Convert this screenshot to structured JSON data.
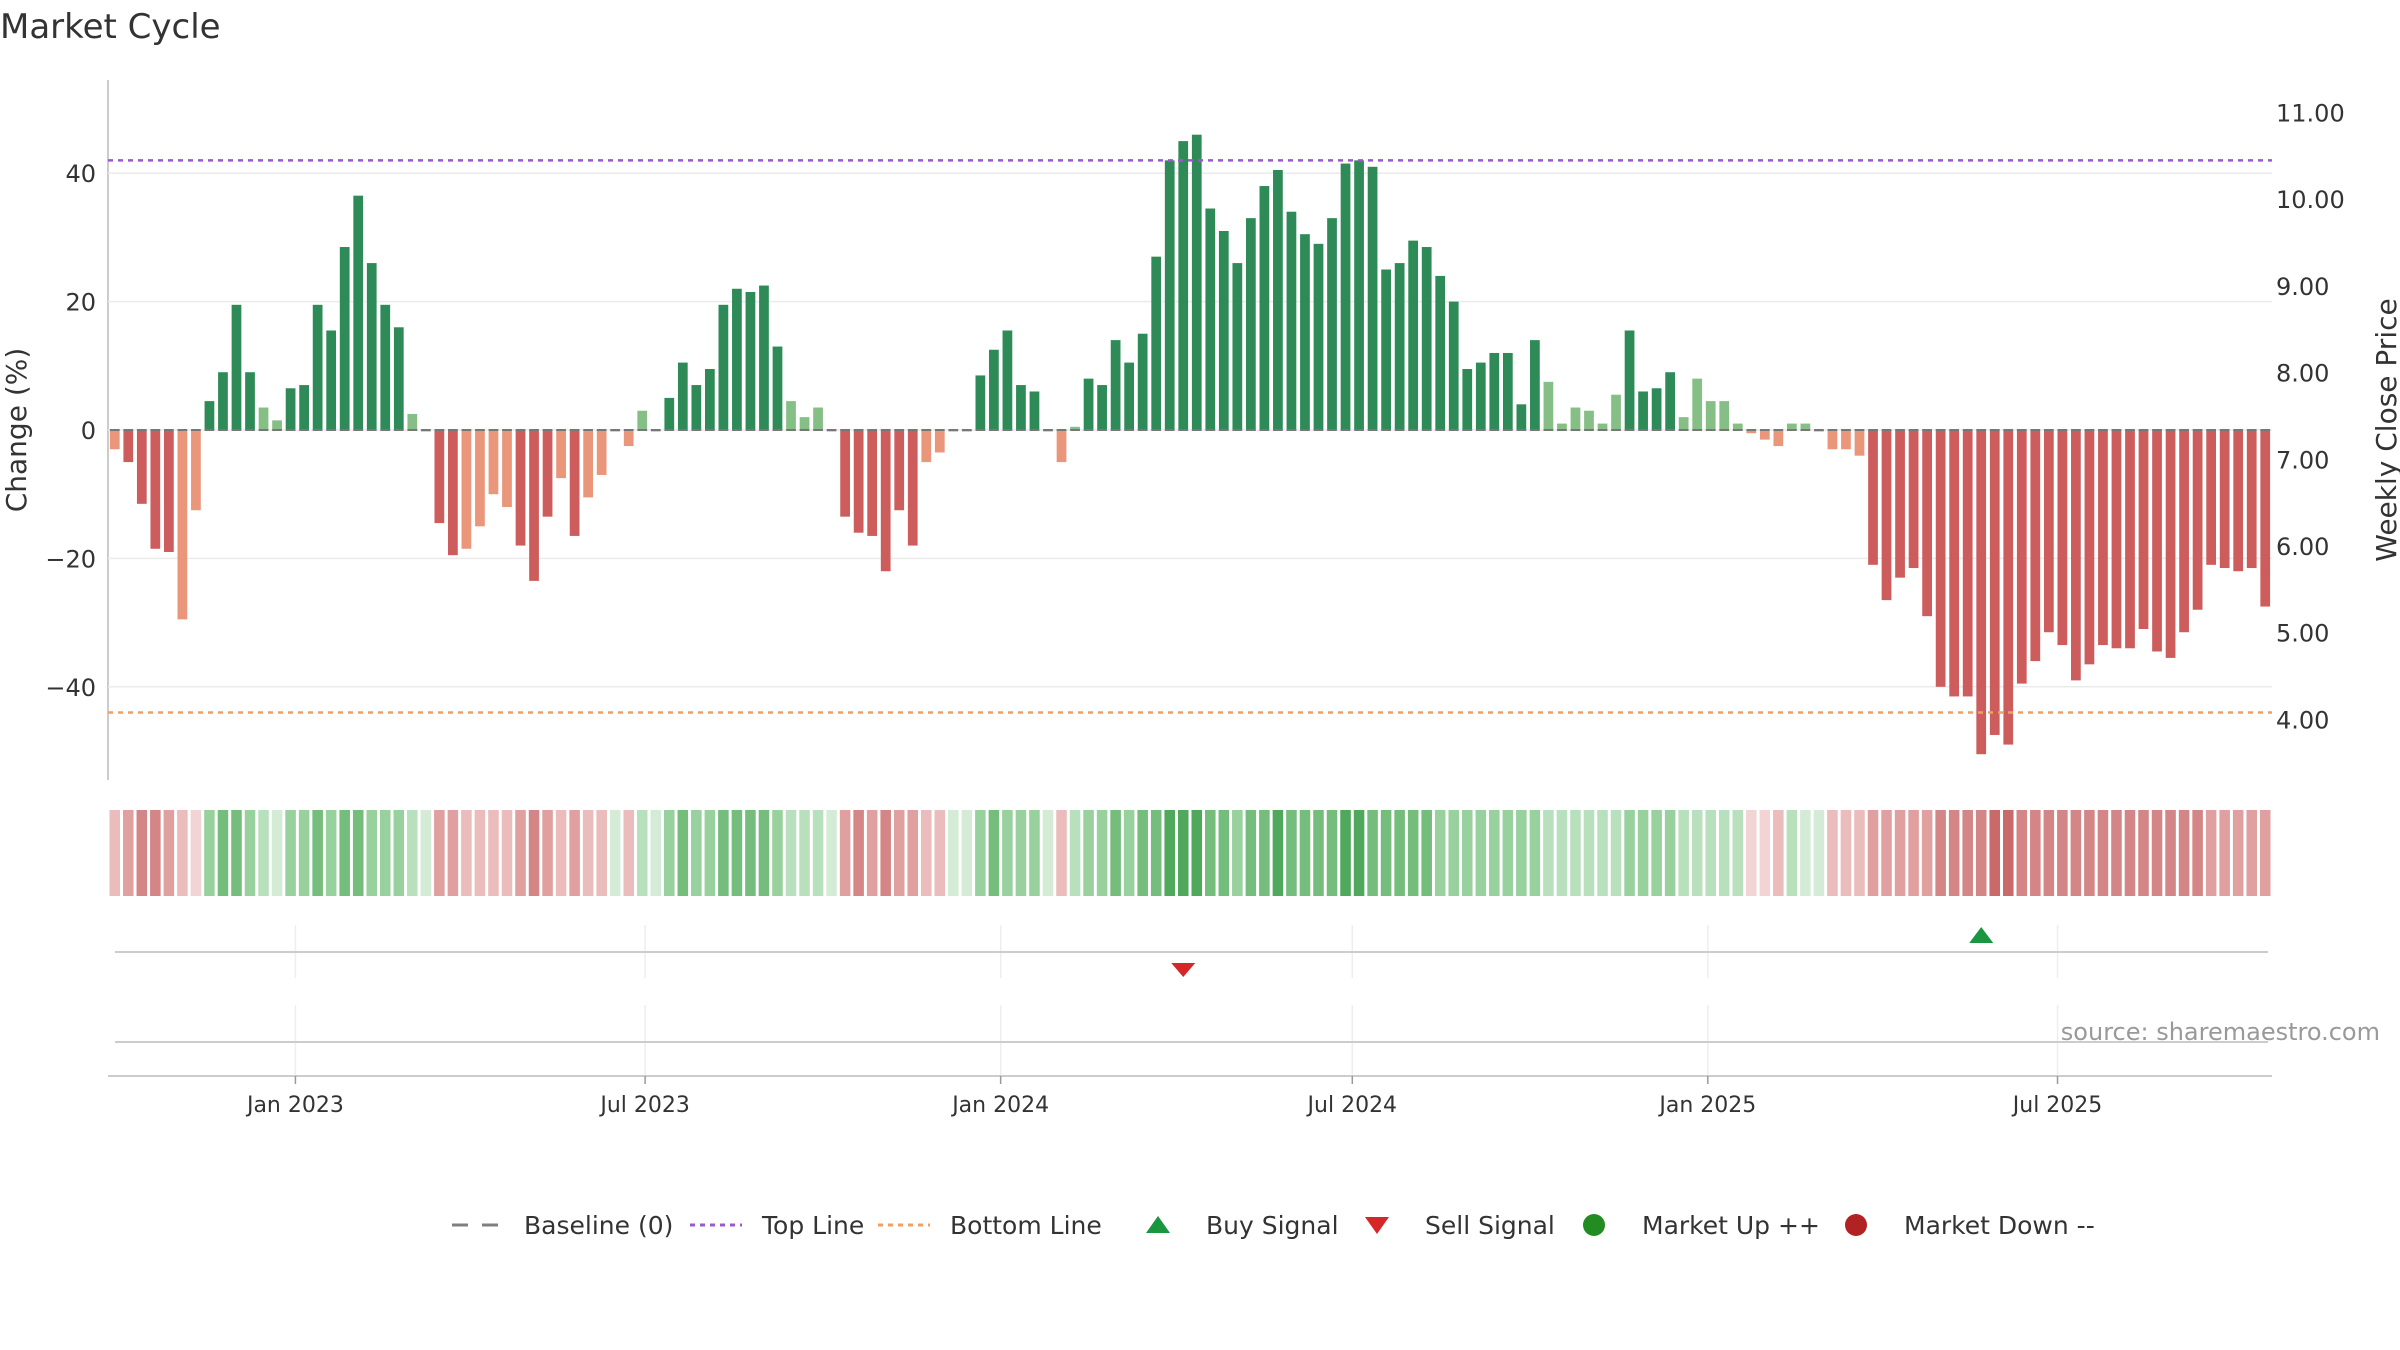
{
  "chart_data": {
    "type": "bar",
    "title": "Market Cycle",
    "ylabel": "Change (%)",
    "y2label": "Weekly Close Price",
    "source": "source: sharemaestro.com",
    "ylim": [
      -55,
      55
    ],
    "y2lim": [
      3.4,
      11.3
    ],
    "yticks": [
      40,
      20,
      0,
      -20,
      -40
    ],
    "ytick_labels": [
      "40",
      "20",
      "0",
      "−20",
      "−40"
    ],
    "y2ticks": [
      11,
      10,
      9,
      8,
      7,
      6,
      5,
      4
    ],
    "y2tick_labels": [
      "11.00",
      "10.00",
      "9.00",
      "8.00",
      "7.00",
      "6.00",
      "5.00",
      "4.00"
    ],
    "x_start": "2022-09-26",
    "x_end": "2025-10-20",
    "xticks": [
      {
        "date": "2023-01-01",
        "label": "Jan 2023"
      },
      {
        "date": "2023-07-01",
        "label": "Jul 2023"
      },
      {
        "date": "2024-01-01",
        "label": "Jan 2024"
      },
      {
        "date": "2024-07-01",
        "label": "Jul 2024"
      },
      {
        "date": "2025-01-01",
        "label": "Jan 2025"
      },
      {
        "date": "2025-07-01",
        "label": "Jul 2025"
      }
    ],
    "top_line": 42,
    "bottom_line": -44,
    "baseline": 0,
    "grid": true,
    "legend_position": "bottom-center",
    "colors": {
      "up_strong": "#2e8b57",
      "up_weak": "#85bf85",
      "down_strong": "#cd5c5c",
      "down_weak": "#e9967a",
      "top_line": "#9b59d0",
      "bottom_line": "#f0a060",
      "buy": "#1a9641",
      "sell": "#d62728",
      "market_up": "#228b22",
      "market_down": "#b22222"
    },
    "values": [
      -3,
      -5,
      -11.5,
      -18.5,
      -19,
      -29.5,
      -12.5,
      4.5,
      9,
      19.5,
      9,
      3.5,
      1.5,
      6.5,
      7,
      19.5,
      15.5,
      28.5,
      36.5,
      26,
      19.5,
      16,
      2.5,
      0,
      -14.5,
      -19.5,
      -18.5,
      -15,
      -10,
      -12,
      -18,
      -23.5,
      -13.5,
      -7.5,
      -16.5,
      -10.5,
      -7,
      0,
      -2.5,
      3,
      0,
      5,
      10.5,
      7,
      9.5,
      19.5,
      22,
      21.5,
      22.5,
      13,
      4.5,
      2,
      3.5,
      0,
      -13.5,
      -16,
      -16.5,
      -22,
      -12.5,
      -18,
      -5,
      -3.5,
      0,
      0,
      8.5,
      12.5,
      15.5,
      7,
      6,
      0,
      -5,
      0.5,
      8,
      7,
      14,
      10.5,
      15,
      27,
      42,
      45,
      46,
      34.5,
      31,
      26,
      33,
      38,
      40.5,
      34,
      30.5,
      29,
      33,
      41.5,
      42,
      41,
      25,
      26,
      29.5,
      28.5,
      24,
      20,
      9.5,
      10.5,
      12,
      12,
      4,
      14,
      7.5,
      1,
      3.5,
      3,
      1,
      5.5,
      15.5,
      6,
      6.5,
      9,
      2,
      8,
      4.5,
      4.5,
      1,
      -0.5,
      -1.5,
      -2.5,
      1,
      1,
      0,
      -3,
      -3,
      -4,
      -21,
      -26.5,
      -23,
      -21.5,
      -29,
      -40,
      -41.5,
      -41.5,
      -50.5,
      -47.5,
      -49,
      -39.5,
      -36,
      -31.5,
      -33.5,
      -39,
      -36.5,
      -33.5,
      -34,
      -34,
      -31,
      -34.5,
      -35.5,
      -31.5,
      -28,
      -21,
      -21.5,
      -22,
      -21.5,
      -27.5
    ],
    "strength": [
      1,
      2,
      3,
      3,
      2,
      1,
      0,
      2,
      3,
      3,
      2,
      1,
      0,
      2,
      2,
      3,
      2,
      3,
      3,
      2,
      2,
      2,
      1,
      0,
      2,
      2,
      1,
      1,
      1,
      1,
      2,
      3,
      2,
      1,
      2,
      1,
      1,
      0,
      1,
      1,
      0,
      2,
      3,
      2,
      2,
      3,
      3,
      3,
      3,
      2,
      1,
      1,
      1,
      0,
      2,
      3,
      2,
      3,
      2,
      2,
      1,
      1,
      0,
      0,
      2,
      3,
      2,
      2,
      2,
      0,
      1,
      1,
      2,
      2,
      3,
      2,
      3,
      3,
      4,
      4,
      4,
      3,
      3,
      2,
      3,
      3,
      4,
      3,
      3,
      3,
      3,
      4,
      4,
      3,
      3,
      3,
      3,
      3,
      2,
      2,
      2,
      2,
      2,
      2,
      2,
      2,
      1,
      1,
      1,
      1,
      1,
      1,
      2,
      2,
      2,
      2,
      1,
      1,
      1,
      1,
      1,
      0,
      0,
      1,
      1,
      0,
      0,
      1,
      1,
      1,
      2,
      2,
      2,
      2,
      2,
      3,
      3,
      3,
      3,
      4,
      4,
      3,
      3,
      3,
      3,
      3,
      3,
      3,
      3,
      3,
      3,
      3,
      3,
      3,
      3,
      2,
      2,
      2,
      2,
      2
    ],
    "close_line": [],
    "signals": [
      {
        "type": "sell",
        "index": 79
      },
      {
        "type": "buy",
        "index": 138
      }
    ],
    "legend": [
      {
        "label": "Baseline (0)",
        "kind": "dash",
        "color": "#808080"
      },
      {
        "label": "Top Line",
        "kind": "dot",
        "color": "#9b59d0"
      },
      {
        "label": "Bottom Line",
        "kind": "dot",
        "color": "#f0a060"
      },
      {
        "label": "Buy Signal",
        "kind": "tri-up",
        "color": "#1a9641"
      },
      {
        "label": "Sell Signal",
        "kind": "tri-down",
        "color": "#d62728"
      },
      {
        "label": "Market Up ++",
        "kind": "circle",
        "color": "#228b22"
      },
      {
        "label": "Market Down --",
        "kind": "circle",
        "color": "#b22222"
      }
    ]
  }
}
